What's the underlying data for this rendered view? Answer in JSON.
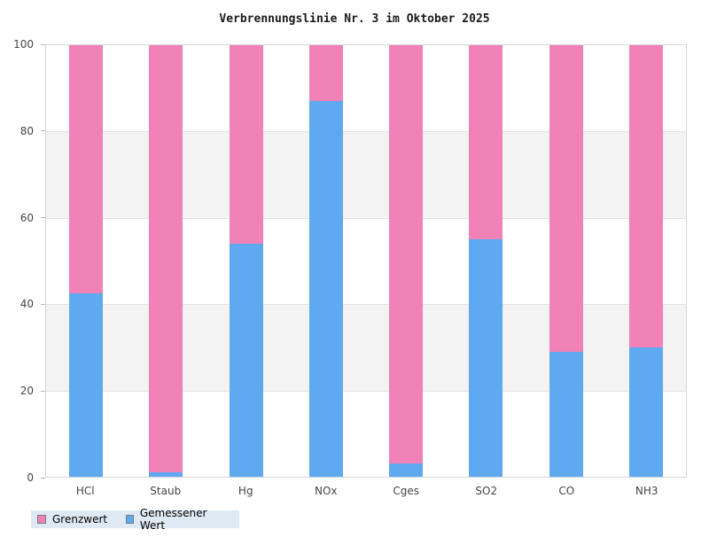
{
  "title": "Verbrennungslinie Nr. 3 im Oktober 2025",
  "colors": {
    "grenzwert_pink": "#f082b8",
    "gemessener_blau": "#5fa9f1",
    "band_gray": "#f3f3f3",
    "gridline": "#e2e2e2",
    "plot_border": "#d8d8d8",
    "axis_text": "#454545",
    "legend_bg": "#dee9f4"
  },
  "legend": {
    "items": [
      {
        "label": "Grenzwert",
        "color": "#f082b8"
      },
      {
        "label": "Gemessener Wert",
        "color": "#5fa9f1"
      }
    ]
  },
  "chart_data": {
    "type": "bar",
    "stacked": true,
    "title": "Verbrennungslinie Nr. 3 im Oktober 2025",
    "categories": [
      "HCl",
      "Staub",
      "Hg",
      "NOx",
      "Cges",
      "SO2",
      "CO",
      "NH3"
    ],
    "series": [
      {
        "name": "Gemessener Wert",
        "color": "#5fa9f1",
        "values": [
          42.5,
          1,
          54,
          87,
          3,
          55,
          29,
          30
        ]
      },
      {
        "name": "Grenzwert",
        "color": "#f082b8",
        "values": [
          57.5,
          99,
          46,
          13,
          97,
          45,
          71,
          70
        ]
      }
    ],
    "xlabel": "",
    "ylabel": "",
    "ylim": [
      0,
      100
    ],
    "yticks": [
      0,
      20,
      40,
      60,
      80,
      100
    ],
    "band_ranges": [
      [
        20,
        40
      ],
      [
        60,
        80
      ]
    ],
    "grid": true,
    "legend_position": "bottom-left"
  }
}
